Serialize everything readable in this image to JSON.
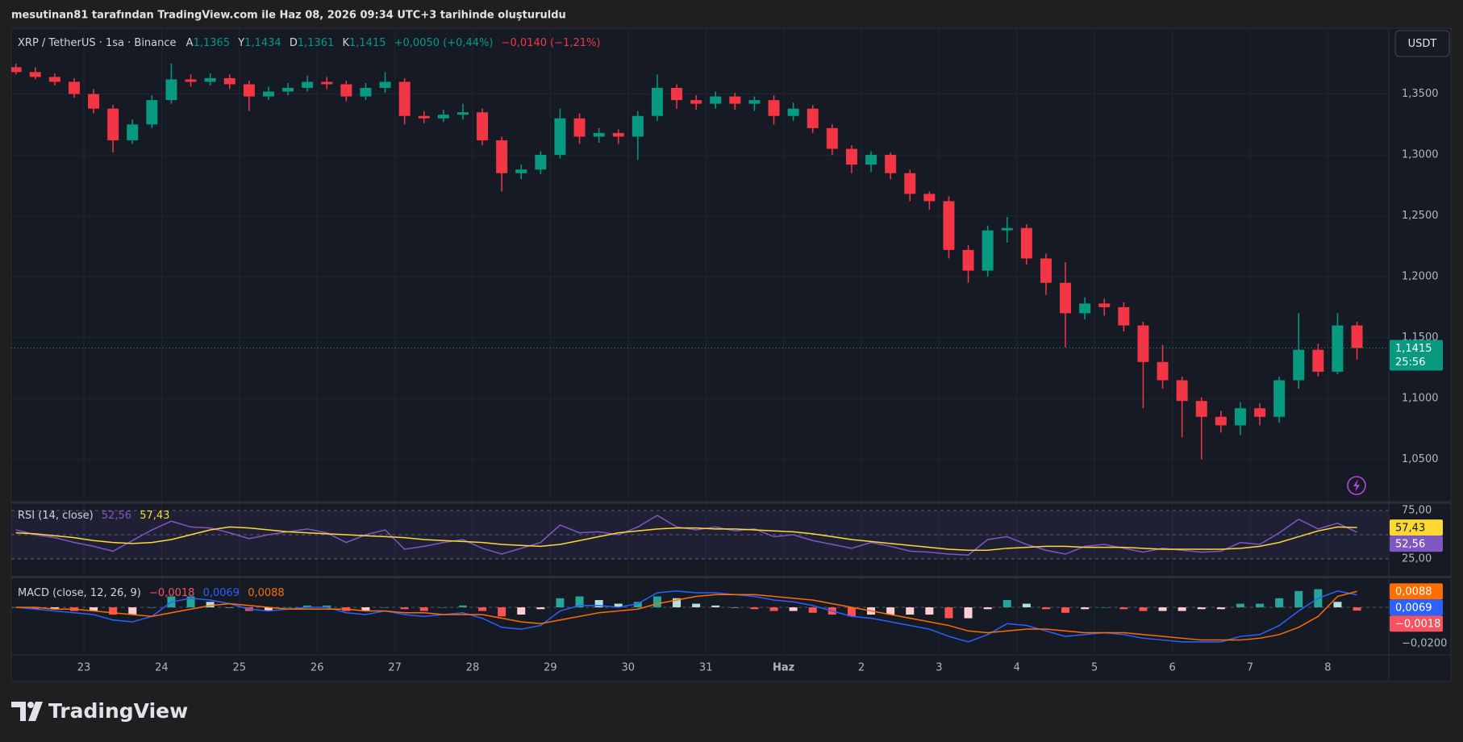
{
  "header": {
    "author_line": "mesutinan81 tarafından TradingView.com ile Haz 08, 2026 09:34 UTC+3 tarihinde oluşturuldu",
    "symbol": "XRP / TetherUS · 1sa · Binance",
    "ohlc": [
      {
        "key": "A",
        "value": "1,1365"
      },
      {
        "key": "Y",
        "value": "1,1434"
      },
      {
        "key": "D",
        "value": "1,1361"
      },
      {
        "key": "K",
        "value": "1,1415"
      }
    ],
    "change": "+0,0050 (+0,44%)",
    "change_day": "−0,0140 (−1,21%)",
    "currency": "USDT"
  },
  "footer": {
    "logo": "TradingView"
  },
  "chart_data": [
    {
      "type": "candlestick",
      "categories": [
        null,
        null,
        null,
        null,
        "23",
        null,
        null,
        null,
        "24",
        null,
        null,
        null,
        "25",
        null,
        null,
        null,
        "26",
        null,
        null,
        null,
        "27",
        null,
        null,
        null,
        "28",
        null,
        null,
        null,
        "29",
        null,
        null,
        null,
        "30",
        null,
        null,
        null,
        "31",
        null,
        null,
        null,
        "Haz",
        null,
        null,
        null,
        "2",
        null,
        null,
        null,
        "3",
        null,
        null,
        null,
        "4",
        null,
        null,
        null,
        "5",
        null,
        null,
        null,
        "6",
        null,
        null,
        null,
        "7",
        null,
        null,
        null,
        "8",
        null
      ],
      "open": [
        1.372,
        1.368,
        1.364,
        1.36,
        1.35,
        1.338,
        1.312,
        1.325,
        1.345,
        1.362,
        1.36,
        1.363,
        1.358,
        1.348,
        1.352,
        1.355,
        1.36,
        1.358,
        1.348,
        1.355,
        1.36,
        1.332,
        1.33,
        1.333,
        1.335,
        1.312,
        1.285,
        1.288,
        1.3,
        1.33,
        1.315,
        1.318,
        1.315,
        1.332,
        1.355,
        1.345,
        1.342,
        1.348,
        1.342,
        1.345,
        1.332,
        1.338,
        1.322,
        1.305,
        1.292,
        1.3,
        1.285,
        1.268,
        1.262,
        1.222,
        1.205,
        1.238,
        1.24,
        1.215,
        1.195,
        1.17,
        1.178,
        1.175,
        1.16,
        1.13,
        1.115,
        1.098,
        1.085,
        1.078,
        1.092,
        1.085,
        1.115,
        1.14,
        1.122,
        1.16
      ],
      "high": [
        1.375,
        1.372,
        1.367,
        1.363,
        1.354,
        1.341,
        1.329,
        1.349,
        1.375,
        1.366,
        1.367,
        1.366,
        1.361,
        1.356,
        1.359,
        1.365,
        1.364,
        1.361,
        1.359,
        1.368,
        1.363,
        1.336,
        1.337,
        1.342,
        1.338,
        1.315,
        1.292,
        1.303,
        1.338,
        1.334,
        1.322,
        1.321,
        1.336,
        1.366,
        1.358,
        1.349,
        1.352,
        1.351,
        1.348,
        1.349,
        1.343,
        1.341,
        1.325,
        1.308,
        1.303,
        1.302,
        1.288,
        1.27,
        1.266,
        1.226,
        1.242,
        1.249,
        1.243,
        1.219,
        1.212,
        1.183,
        1.182,
        1.179,
        1.163,
        1.144,
        1.118,
        1.101,
        1.09,
        1.097,
        1.096,
        1.118,
        1.17,
        1.145,
        1.17,
        1.163
      ],
      "low": [
        1.366,
        1.362,
        1.357,
        1.347,
        1.334,
        1.302,
        1.309,
        1.322,
        1.342,
        1.356,
        1.357,
        1.354,
        1.336,
        1.345,
        1.349,
        1.352,
        1.354,
        1.344,
        1.345,
        1.351,
        1.325,
        1.326,
        1.327,
        1.329,
        1.308,
        1.27,
        1.28,
        1.284,
        1.297,
        1.309,
        1.31,
        1.309,
        1.296,
        1.328,
        1.338,
        1.337,
        1.338,
        1.337,
        1.336,
        1.325,
        1.328,
        1.318,
        1.3,
        1.285,
        1.286,
        1.28,
        1.262,
        1.255,
        1.215,
        1.195,
        1.2,
        1.228,
        1.21,
        1.185,
        1.142,
        1.165,
        1.168,
        1.155,
        1.092,
        1.108,
        1.068,
        1.05,
        1.072,
        1.07,
        1.078,
        1.08,
        1.108,
        1.118,
        1.12,
        1.132
      ],
      "close": [
        1.368,
        1.364,
        1.36,
        1.35,
        1.338,
        1.312,
        1.325,
        1.345,
        1.362,
        1.36,
        1.363,
        1.358,
        1.348,
        1.352,
        1.355,
        1.36,
        1.358,
        1.348,
        1.355,
        1.36,
        1.332,
        1.33,
        1.333,
        1.335,
        1.312,
        1.285,
        1.288,
        1.3,
        1.33,
        1.315,
        1.318,
        1.315,
        1.332,
        1.355,
        1.345,
        1.342,
        1.348,
        1.342,
        1.345,
        1.332,
        1.338,
        1.322,
        1.305,
        1.292,
        1.3,
        1.285,
        1.268,
        1.262,
        1.222,
        1.205,
        1.238,
        1.24,
        1.215,
        1.195,
        1.17,
        1.178,
        1.175,
        1.16,
        1.13,
        1.115,
        1.098,
        1.085,
        1.078,
        1.092,
        1.085,
        1.115,
        1.14,
        1.122,
        1.16,
        1.1415
      ],
      "up_color": "#089981",
      "down_color": "#f23645",
      "last_price_label": "1,1415",
      "countdown": "25:56",
      "ylim": [
        1.016,
        1.404
      ],
      "yticks": [
        {
          "value": 1.05,
          "label": "1,0500"
        },
        {
          "value": 1.1,
          "label": "1,1000"
        },
        {
          "value": 1.15,
          "label": "1,1500"
        },
        {
          "value": 1.2,
          "label": "1,2000"
        },
        {
          "value": 1.25,
          "label": "1,2500"
        },
        {
          "value": 1.3,
          "label": "1,3000"
        },
        {
          "value": 1.35,
          "label": "1,3500"
        }
      ],
      "grid": true
    },
    {
      "type": "line",
      "title": "RSI (14, close)",
      "series": [
        {
          "color": "#7e57c2",
          "last_label": "52,56",
          "values": [
            55,
            50,
            47,
            42,
            38,
            33,
            44,
            55,
            64,
            58,
            57,
            52,
            46,
            50,
            53,
            56,
            52,
            42,
            50,
            55,
            35,
            38,
            42,
            45,
            36,
            30,
            36,
            42,
            60,
            52,
            53,
            50,
            58,
            70,
            58,
            55,
            58,
            54,
            56,
            48,
            50,
            44,
            40,
            36,
            42,
            38,
            33,
            32,
            30,
            29,
            45,
            48,
            40,
            34,
            30,
            38,
            40,
            36,
            32,
            36,
            34,
            32,
            33,
            42,
            40,
            52,
            66,
            56,
            62,
            52.56
          ]
        },
        {
          "color": "#fdd835",
          "last_label": "57,43",
          "values": [
            52,
            51,
            49,
            47,
            44,
            42,
            41,
            42,
            45,
            50,
            55,
            58,
            57,
            55,
            53,
            52,
            51,
            50,
            49,
            48,
            47,
            45,
            44,
            43,
            42,
            40,
            39,
            38,
            40,
            44,
            48,
            52,
            54,
            56,
            57,
            57,
            56,
            56,
            55,
            54,
            53,
            51,
            48,
            45,
            43,
            41,
            39,
            37,
            35,
            34,
            34,
            36,
            37,
            38,
            38,
            37,
            37,
            37,
            36,
            35,
            35,
            35,
            35,
            36,
            38,
            42,
            48,
            54,
            58,
            57.43
          ]
        }
      ],
      "levels": [
        75,
        50,
        25
      ],
      "band_color": "#7e57c2",
      "ylim": [
        7.5,
        81.7
      ],
      "yticks": [
        {
          "value": 25,
          "label": "25,00"
        },
        {
          "value": 75,
          "label": "75,00"
        }
      ]
    },
    {
      "type": "macd",
      "title": "MACD (close, 12, 26, 9)",
      "series": [
        {
          "kind": "histogram",
          "color": "#f7525f",
          "colors": [
            "#26a69a",
            "#b2dfdb",
            "#ffcdd2",
            "#ff5252"
          ],
          "last_label": "−0,0018",
          "values": [
            0,
            -0.001,
            -0.001,
            -0.002,
            -0.002,
            -0.004,
            -0.004,
            0,
            0.006,
            0.006,
            0.003,
            0,
            -0.002,
            -0.002,
            0,
            0.001,
            0.001,
            -0.002,
            -0.002,
            0,
            -0.001,
            -0.002,
            0,
            0.001,
            -0.002,
            -0.005,
            -0.004,
            -0.001,
            0.005,
            0.006,
            0.004,
            0.002,
            0.003,
            0.006,
            0.005,
            0.002,
            0.001,
            0,
            -0.001,
            -0.002,
            -0.002,
            -0.003,
            -0.004,
            -0.005,
            -0.004,
            -0.004,
            -0.004,
            -0.004,
            -0.006,
            -0.006,
            -0.001,
            0.004,
            0.002,
            -0.001,
            -0.003,
            -0.001,
            0,
            -0.001,
            -0.002,
            -0.002,
            -0.002,
            -0.001,
            -0.001,
            0.002,
            0.002,
            0.005,
            0.009,
            0.01,
            0.003,
            -0.0018
          ]
        },
        {
          "kind": "line",
          "color": "#2962ff",
          "last_label": "0,0069",
          "values": [
            0,
            -0.001,
            -0.002,
            -0.003,
            -0.004,
            -0.007,
            -0.008,
            -0.005,
            0.003,
            0.005,
            0.004,
            0.002,
            -0.001,
            -0.002,
            -0.001,
            0,
            0,
            -0.003,
            -0.004,
            -0.002,
            -0.004,
            -0.005,
            -0.004,
            -0.003,
            -0.006,
            -0.011,
            -0.012,
            -0.01,
            -0.002,
            0.001,
            0.001,
            0,
            0.002,
            0.008,
            0.009,
            0.008,
            0.008,
            0.007,
            0.006,
            0.004,
            0.003,
            0.001,
            -0.002,
            -0.005,
            -0.006,
            -0.008,
            -0.01,
            -0.012,
            -0.016,
            -0.019,
            -0.015,
            -0.009,
            -0.01,
            -0.013,
            -0.016,
            -0.015,
            -0.014,
            -0.015,
            -0.017,
            -0.018,
            -0.019,
            -0.019,
            -0.019,
            -0.016,
            -0.015,
            -0.01,
            -0.002,
            0.005,
            0.009,
            0.0069
          ]
        },
        {
          "kind": "line",
          "color": "#ff6d00",
          "last_label": "0,0088",
          "values": [
            0,
            0,
            -0.001,
            -0.001,
            -0.002,
            -0.003,
            -0.004,
            -0.005,
            -0.003,
            -0.001,
            0.001,
            0.002,
            0.001,
            0,
            -0.001,
            -0.001,
            -0.001,
            -0.001,
            -0.002,
            -0.002,
            -0.003,
            -0.003,
            -0.004,
            -0.004,
            -0.004,
            -0.006,
            -0.008,
            -0.009,
            -0.007,
            -0.005,
            -0.003,
            -0.002,
            -0.001,
            0.002,
            0.004,
            0.006,
            0.007,
            0.007,
            0.007,
            0.006,
            0.005,
            0.004,
            0.002,
            0,
            -0.002,
            -0.004,
            -0.006,
            -0.008,
            -0.01,
            -0.013,
            -0.014,
            -0.013,
            -0.012,
            -0.012,
            -0.013,
            -0.014,
            -0.014,
            -0.014,
            -0.015,
            -0.016,
            -0.017,
            -0.018,
            -0.018,
            -0.018,
            -0.017,
            -0.015,
            -0.011,
            -0.005,
            0.006,
            0.0088
          ]
        }
      ],
      "ylim": [
        -0.0253,
        0.016
      ],
      "yticks": [
        {
          "value": -0.02,
          "label": "−0,0200"
        }
      ]
    }
  ]
}
